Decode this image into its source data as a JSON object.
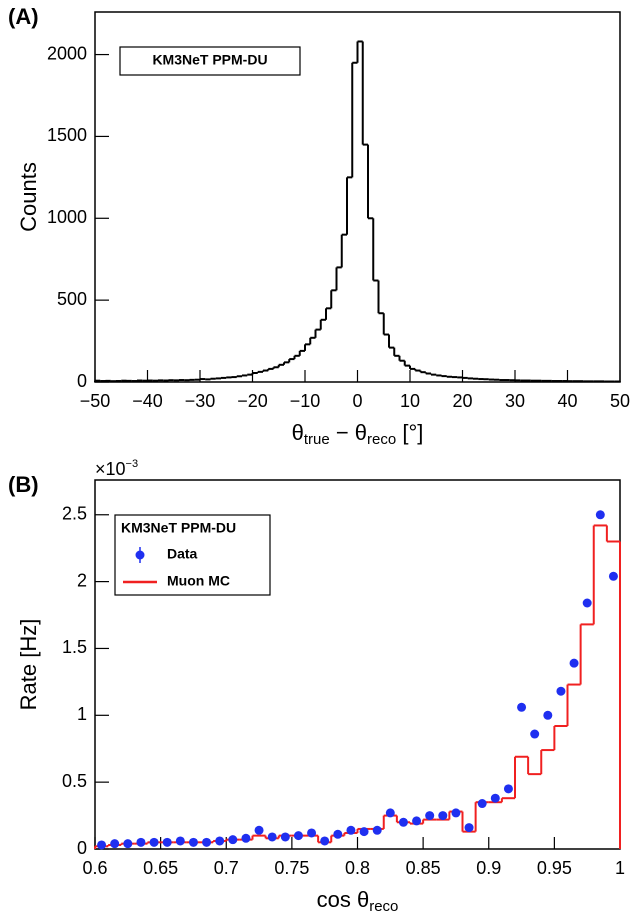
{
  "chart_data": [
    {
      "type": "histogram",
      "panel_label": "(A)",
      "annotation": "KM3NeT PPM-DU",
      "xlabel": [
        "θ",
        "true",
        " − θ",
        "reco",
        " [°]"
      ],
      "ylabel": "Counts",
      "bins": [
        -50,
        -49,
        -48,
        -47,
        -46,
        -45,
        -44,
        -43,
        -42,
        -41,
        -40,
        -39,
        -38,
        -37,
        -36,
        -35,
        -34,
        -33,
        -32,
        -31,
        -30,
        -29,
        -28,
        -27,
        -26,
        -25,
        -24,
        -23,
        -22,
        -21,
        -20,
        -19,
        -18,
        -17,
        -16,
        -15,
        -14,
        -13,
        -12,
        -11,
        -10,
        -9,
        -8,
        -7,
        -6,
        -5,
        -4,
        -3,
        -2,
        -1,
        0,
        1,
        2,
        3,
        4,
        5,
        6,
        7,
        8,
        9,
        10,
        11,
        12,
        13,
        14,
        15,
        16,
        17,
        18,
        19,
        20,
        21,
        22,
        23,
        24,
        25,
        26,
        27,
        28,
        29,
        30,
        31,
        32,
        33,
        34,
        35,
        36,
        37,
        38,
        39,
        40,
        41,
        42,
        43,
        44,
        45,
        46,
        47,
        48,
        49,
        50
      ],
      "series": [
        {
          "color": "#000000",
          "style": "step",
          "values": [
            8,
            6,
            7,
            5,
            6,
            8,
            7,
            6,
            9,
            8,
            9,
            8,
            10,
            9,
            11,
            10,
            12,
            11,
            13,
            14,
            18,
            16,
            20,
            22,
            25,
            28,
            30,
            35,
            40,
            45,
            55,
            62,
            70,
            80,
            90,
            105,
            120,
            140,
            160,
            190,
            230,
            270,
            320,
            380,
            450,
            560,
            700,
            900,
            1250,
            1950,
            2080,
            1450,
            1000,
            620,
            420,
            290,
            210,
            160,
            130,
            100,
            80,
            70,
            60,
            52,
            45,
            40,
            36,
            32,
            30,
            28,
            25,
            22,
            20,
            18,
            17,
            15,
            14,
            12,
            12,
            11,
            10,
            9,
            9,
            8,
            8,
            7,
            7,
            6,
            6,
            6,
            5,
            5,
            5,
            4,
            4,
            4,
            4,
            3,
            3,
            3
          ]
        }
      ],
      "xlim": [
        -50,
        50
      ],
      "xticks": [
        {
          "value": -50,
          "label": "−50"
        },
        {
          "value": -40,
          "label": "−40"
        },
        {
          "value": -30,
          "label": "−30"
        },
        {
          "value": -20,
          "label": "−20"
        },
        {
          "value": -10,
          "label": "−10"
        },
        0,
        10,
        20,
        30,
        40,
        50
      ],
      "ylim": [
        0,
        2260
      ],
      "yticks": [
        0,
        500,
        1000,
        1500,
        2000
      ]
    },
    {
      "type": "histogram",
      "panel_label": "(B)",
      "y_scale_label": [
        "×10",
        "−3"
      ],
      "legend_title": "KM3NeT PPM-DU",
      "legend_loc": "upper left",
      "xlabel": [
        "cos θ",
        "reco"
      ],
      "ylabel": "Rate [Hz]",
      "bins": [
        0.6,
        0.61,
        0.62,
        0.63,
        0.64,
        0.65,
        0.66,
        0.67,
        0.68,
        0.69,
        0.7,
        0.71,
        0.72,
        0.73,
        0.74,
        0.75,
        0.76,
        0.77,
        0.78,
        0.79,
        0.8,
        0.81,
        0.82,
        0.83,
        0.84,
        0.85,
        0.86,
        0.87,
        0.88,
        0.89,
        0.9,
        0.91,
        0.92,
        0.93,
        0.94,
        0.95,
        0.96,
        0.97,
        0.98,
        0.99,
        1
      ],
      "series": [
        {
          "name": "Data",
          "color": "#1f2ff0",
          "style": "points",
          "values": [
            0.03,
            0.04,
            0.04,
            0.05,
            0.05,
            0.05,
            0.06,
            0.05,
            0.05,
            0.06,
            0.07,
            0.08,
            0.14,
            0.09,
            0.09,
            0.1,
            0.12,
            0.06,
            0.11,
            0.14,
            0.13,
            0.14,
            0.27,
            0.2,
            0.21,
            0.25,
            0.25,
            0.27,
            0.16,
            0.34,
            0.38,
            0.45,
            1.06,
            0.86,
            1.0,
            1.18,
            1.39,
            1.84,
            2.5,
            2.04
          ]
        },
        {
          "name": "Muon MC",
          "color": "#f02020",
          "style": "step",
          "values": [
            0.02,
            0.03,
            0.04,
            0.04,
            0.05,
            0.05,
            0.05,
            0.05,
            0.05,
            0.06,
            0.07,
            0.07,
            0.1,
            0.08,
            0.1,
            0.1,
            0.1,
            0.05,
            0.1,
            0.12,
            0.15,
            0.15,
            0.25,
            0.2,
            0.19,
            0.22,
            0.22,
            0.28,
            0.13,
            0.35,
            0.35,
            0.38,
            0.69,
            0.56,
            0.74,
            0.92,
            1.23,
            1.68,
            2.42,
            2.3
          ]
        }
      ],
      "xlim": [
        0.6,
        1
      ],
      "xticks": [
        0.6,
        0.65,
        0.7,
        0.75,
        0.8,
        0.85,
        0.9,
        0.95,
        1
      ],
      "ylim": [
        0,
        2.76
      ],
      "yticks": [
        0,
        0.5,
        1,
        1.5,
        2,
        2.5
      ]
    }
  ]
}
